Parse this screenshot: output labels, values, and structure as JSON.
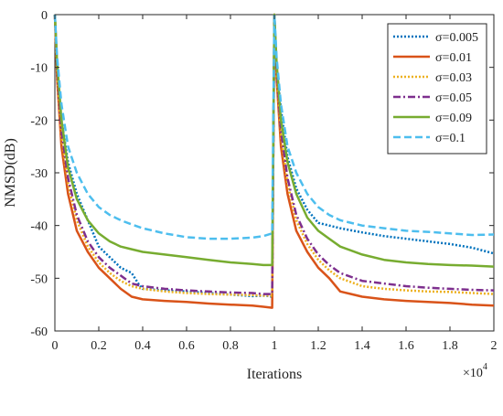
{
  "chart_data": {
    "type": "line",
    "title": "",
    "xlabel": "Iterations",
    "ylabel": "NMSD(dB)",
    "x_multiplier_label": "×10",
    "x_multiplier_exponent": "4",
    "xlim": [
      0,
      2
    ],
    "ylim": [
      -60,
      0
    ],
    "x_ticks": [
      "0",
      "0.2",
      "0.4",
      "0.6",
      "0.8",
      "1",
      "1.2",
      "1.4",
      "1.6",
      "1.8",
      "2"
    ],
    "y_ticks": [
      "0",
      "-10",
      "-20",
      "-30",
      "-40",
      "-50",
      "-60"
    ],
    "grid": false,
    "legend_position": "top-right",
    "series": [
      {
        "name": "σ=0.005",
        "color": "#0072BD",
        "dash": "dotted",
        "x": [
          0,
          0.01,
          0.03,
          0.06,
          0.1,
          0.15,
          0.2,
          0.25,
          0.3,
          0.35,
          0.38,
          0.4,
          0.5,
          0.6,
          0.7,
          0.8,
          0.9,
          0.96,
          0.99,
          1.0,
          1.01,
          1.03,
          1.06,
          1.1,
          1.15,
          1.2,
          1.3,
          1.4,
          1.5,
          1.6,
          1.7,
          1.8,
          1.9,
          2.0
        ],
        "y": [
          0,
          -10,
          -20,
          -28,
          -34,
          -39,
          -44,
          -46,
          -48,
          -49,
          -51,
          -52,
          -52.3,
          -52.5,
          -52.8,
          -53.1,
          -53.4,
          -53.3,
          -53.5,
          0,
          -10,
          -18,
          -27,
          -33,
          -37,
          -39.5,
          -40.5,
          -41.3,
          -42,
          -42.5,
          -43,
          -43.5,
          -44.2,
          -45.3
        ]
      },
      {
        "name": "σ=0.01",
        "color": "#D95319",
        "dash": "solid",
        "x": [
          0,
          0.01,
          0.03,
          0.06,
          0.1,
          0.15,
          0.2,
          0.25,
          0.3,
          0.35,
          0.4,
          0.5,
          0.6,
          0.7,
          0.8,
          0.9,
          0.95,
          0.99,
          1.0,
          1.01,
          1.03,
          1.06,
          1.1,
          1.15,
          1.2,
          1.25,
          1.3,
          1.4,
          1.5,
          1.6,
          1.7,
          1.8,
          1.9,
          2.0
        ],
        "y": [
          0,
          -12,
          -25,
          -34,
          -41,
          -45,
          -48,
          -50,
          -52,
          -53.5,
          -54,
          -54.3,
          -54.5,
          -54.8,
          -55,
          -55.2,
          -55.4,
          -55.6,
          0,
          -12,
          -25,
          -34,
          -41,
          -45,
          -48,
          -50,
          -52.5,
          -53.5,
          -54,
          -54.3,
          -54.5,
          -54.7,
          -55,
          -55.2
        ]
      },
      {
        "name": "σ=0.03",
        "color": "#EDB120",
        "dash": "dotted",
        "x": [
          0,
          0.01,
          0.03,
          0.06,
          0.1,
          0.15,
          0.2,
          0.25,
          0.3,
          0.35,
          0.4,
          0.5,
          0.6,
          0.7,
          0.8,
          0.9,
          0.95,
          0.99,
          1.0,
          1.01,
          1.03,
          1.06,
          1.1,
          1.15,
          1.2,
          1.25,
          1.3,
          1.4,
          1.5,
          1.6,
          1.7,
          1.8,
          1.9,
          2.0
        ],
        "y": [
          0,
          -11,
          -23,
          -32,
          -39,
          -44,
          -47,
          -49,
          -50.5,
          -51.5,
          -52,
          -52.5,
          -52.8,
          -53,
          -53.1,
          -53.2,
          -53.3,
          -53.3,
          0,
          -11,
          -23,
          -32,
          -39,
          -43.5,
          -46.5,
          -48.5,
          -50,
          -51.5,
          -52,
          -52.3,
          -52.5,
          -52.6,
          -52.8,
          -53
        ]
      },
      {
        "name": "σ=0.05",
        "color": "#7E2F8E",
        "dash": "dashdot",
        "x": [
          0,
          0.01,
          0.03,
          0.06,
          0.1,
          0.15,
          0.2,
          0.25,
          0.3,
          0.35,
          0.4,
          0.5,
          0.6,
          0.7,
          0.8,
          0.9,
          0.95,
          0.99,
          1.0,
          1.01,
          1.03,
          1.06,
          1.1,
          1.15,
          1.2,
          1.25,
          1.3,
          1.4,
          1.5,
          1.6,
          1.7,
          1.8,
          1.9,
          2.0
        ],
        "y": [
          0,
          -10,
          -22,
          -31,
          -38,
          -43,
          -46,
          -48,
          -49.5,
          -51,
          -51.5,
          -52,
          -52.3,
          -52.5,
          -52.7,
          -52.8,
          -53,
          -53,
          0,
          -10,
          -22,
          -31,
          -38,
          -42.5,
          -45.5,
          -47.5,
          -49,
          -50.5,
          -51,
          -51.5,
          -51.8,
          -52,
          -52.2,
          -52.3
        ]
      },
      {
        "name": "σ=0.09",
        "color": "#77AC30",
        "dash": "solid",
        "x": [
          0,
          0.01,
          0.03,
          0.06,
          0.1,
          0.15,
          0.2,
          0.25,
          0.3,
          0.35,
          0.4,
          0.5,
          0.6,
          0.7,
          0.8,
          0.9,
          0.95,
          0.99,
          1.0,
          1.01,
          1.03,
          1.06,
          1.1,
          1.15,
          1.2,
          1.25,
          1.3,
          1.4,
          1.5,
          1.6,
          1.7,
          1.8,
          1.9,
          2.0
        ],
        "y": [
          0,
          -9,
          -20,
          -29,
          -35,
          -39,
          -41.5,
          -43,
          -44,
          -44.5,
          -45,
          -45.5,
          -46,
          -46.5,
          -47,
          -47.3,
          -47.5,
          -47.5,
          0,
          -9,
          -20,
          -28,
          -34,
          -38.5,
          -41,
          -42.5,
          -44,
          -45.5,
          -46.5,
          -47,
          -47.3,
          -47.5,
          -47.6,
          -47.8
        ]
      },
      {
        "name": "σ=0.1",
        "color": "#4DBEEE",
        "dash": "dashed",
        "x": [
          0,
          0.01,
          0.03,
          0.06,
          0.1,
          0.15,
          0.2,
          0.25,
          0.3,
          0.35,
          0.4,
          0.5,
          0.6,
          0.7,
          0.8,
          0.9,
          0.95,
          0.99,
          1.0,
          1.01,
          1.03,
          1.06,
          1.1,
          1.15,
          1.2,
          1.25,
          1.3,
          1.4,
          1.5,
          1.6,
          1.7,
          1.8,
          1.9,
          2.0
        ],
        "y": [
          0,
          -8,
          -17,
          -25,
          -30,
          -34,
          -36.5,
          -38,
          -39,
          -39.8,
          -40.5,
          -41.5,
          -42.2,
          -42.5,
          -42.5,
          -42.3,
          -42,
          -41.5,
          0,
          -8,
          -17,
          -25,
          -30,
          -34,
          -36.5,
          -38,
          -39,
          -40,
          -40.5,
          -41,
          -41.2,
          -41.5,
          -41.8,
          -41.7
        ]
      }
    ]
  }
}
